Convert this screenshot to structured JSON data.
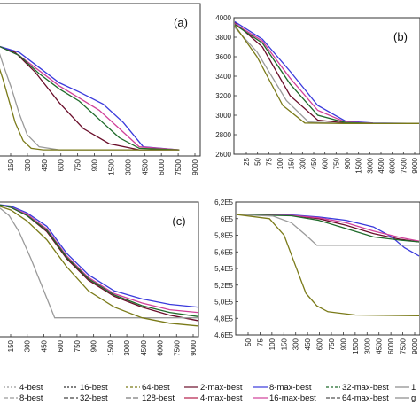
{
  "chart_data": [
    {
      "type": "line",
      "panel_label": "(a)",
      "x_tick_labels": [
        "150",
        "300",
        "450",
        "600",
        "750",
        "900",
        "1500",
        "3000",
        "4500",
        "6000",
        "7500",
        "9000"
      ],
      "y_tick_labels": [],
      "ylim": [
        0,
        100
      ],
      "series": [
        {
          "legend": "2-max-best",
          "color": "#6a0d2a",
          "x": [
            0,
            0.08,
            0.18,
            0.3,
            0.42,
            0.55,
            0.7,
            0.9
          ],
          "y": [
            72,
            68,
            55,
            35,
            18,
            8,
            4,
            4
          ]
        },
        {
          "legend": "4-max-best",
          "color": "#3a3adc",
          "x": [
            0,
            0.1,
            0.2,
            0.3,
            0.4,
            0.52,
            0.62,
            0.72,
            0.9
          ],
          "y": [
            72,
            68,
            58,
            48,
            42,
            34,
            22,
            6,
            4
          ]
        },
        {
          "legend": "8-max-best",
          "color": "#d0409a",
          "x": [
            0,
            0.1,
            0.2,
            0.3,
            0.4,
            0.5,
            0.6,
            0.7,
            0.9
          ],
          "y": [
            72,
            66,
            56,
            46,
            38,
            30,
            18,
            6,
            4
          ]
        },
        {
          "legend": "16-max-best",
          "color": "#1e6a2a",
          "x": [
            0,
            0.1,
            0.2,
            0.3,
            0.4,
            0.5,
            0.6,
            0.7,
            0.9
          ],
          "y": [
            72,
            66,
            54,
            44,
            36,
            24,
            12,
            5,
            4
          ]
        },
        {
          "legend": "64-best",
          "color": "#9a9a9a",
          "x": [
            0,
            0.02,
            0.06,
            0.1,
            0.14,
            0.2,
            0.3,
            0.5,
            0.9
          ],
          "y": [
            68,
            60,
            45,
            28,
            14,
            6,
            4,
            4,
            4
          ]
        },
        {
          "legend": "4-best",
          "color": "#7a7a18",
          "x": [
            0,
            0.02,
            0.05,
            0.08,
            0.12,
            0.16,
            0.22,
            0.4,
            0.9
          ],
          "y": [
            58,
            50,
            36,
            22,
            10,
            5,
            4,
            4,
            4
          ]
        }
      ]
    },
    {
      "type": "line",
      "panel_label": "(b)",
      "x_tick_labels": [
        "25",
        "50",
        "75",
        "100",
        "150",
        "300",
        "450",
        "600",
        "750",
        "900",
        "1500",
        "3000",
        "4500",
        "6000",
        "7500",
        "9000"
      ],
      "y_tick_labels": [
        "2600",
        "2800",
        "3000",
        "3200",
        "3400",
        "3600",
        "3800",
        "4000"
      ],
      "ylim": [
        2600,
        4000
      ],
      "series": [
        {
          "legend": "2-max-best",
          "color": "#6a0d2a",
          "x": [
            0,
            0.15,
            0.3,
            0.45,
            0.6,
            0.75,
            1
          ],
          "y": [
            3950,
            3700,
            3200,
            2950,
            2920,
            2915,
            2915
          ]
        },
        {
          "legend": "4-max-best",
          "color": "#3a3adc",
          "x": [
            0,
            0.15,
            0.3,
            0.45,
            0.6,
            0.75,
            1
          ],
          "y": [
            3960,
            3780,
            3450,
            3100,
            2940,
            2920,
            2915
          ]
        },
        {
          "legend": "8-max-best",
          "color": "#d0409a",
          "x": [
            0,
            0.15,
            0.3,
            0.45,
            0.6,
            0.75,
            1
          ],
          "y": [
            3940,
            3760,
            3380,
            3050,
            2930,
            2918,
            2915
          ]
        },
        {
          "legend": "16-max-best",
          "color": "#1e6a2a",
          "x": [
            0,
            0.15,
            0.3,
            0.45,
            0.6,
            0.75,
            1
          ],
          "y": [
            3930,
            3740,
            3320,
            3000,
            2925,
            2916,
            2915
          ]
        },
        {
          "legend": "64-best",
          "color": "#9a9a9a",
          "x": [
            0,
            0.12,
            0.28,
            0.4,
            0.6,
            1
          ],
          "y": [
            3900,
            3650,
            3150,
            2930,
            2915,
            2915
          ]
        },
        {
          "legend": "4-best",
          "color": "#7a7a18",
          "x": [
            0,
            0.12,
            0.26,
            0.38,
            0.6,
            1
          ],
          "y": [
            3920,
            3600,
            3100,
            2920,
            2915,
            2915
          ]
        }
      ]
    },
    {
      "type": "line",
      "panel_label": "(c)",
      "x_tick_labels": [
        "150",
        "300",
        "450",
        "600",
        "750",
        "900",
        "1500",
        "3000",
        "4500",
        "6000",
        "7500",
        "9000"
      ],
      "y_tick_labels": [],
      "ylim": [
        0,
        100
      ],
      "series": [
        {
          "legend": "2-max-best",
          "color": "#6a0d2a",
          "x": [
            0,
            0.06,
            0.14,
            0.24,
            0.34,
            0.45,
            0.58,
            0.72,
            0.86,
            1
          ],
          "y": [
            98,
            96,
            90,
            78,
            58,
            42,
            30,
            22,
            16,
            12
          ]
        },
        {
          "legend": "4-max-best",
          "color": "#3a3adc",
          "x": [
            0,
            0.06,
            0.14,
            0.24,
            0.34,
            0.45,
            0.58,
            0.72,
            0.86,
            1
          ],
          "y": [
            98,
            97,
            92,
            82,
            62,
            46,
            34,
            28,
            24,
            22
          ]
        },
        {
          "legend": "8-max-best",
          "color": "#d0409a",
          "x": [
            0,
            0.06,
            0.14,
            0.24,
            0.34,
            0.45,
            0.58,
            0.72,
            0.86,
            1
          ],
          "y": [
            98,
            96,
            91,
            80,
            60,
            44,
            32,
            25,
            20,
            18
          ]
        },
        {
          "legend": "16-max-best",
          "color": "#1e6a2a",
          "x": [
            0,
            0.06,
            0.14,
            0.24,
            0.34,
            0.45,
            0.58,
            0.72,
            0.86,
            1
          ],
          "y": [
            98,
            96,
            90,
            79,
            59,
            43,
            31,
            23,
            18,
            15
          ]
        },
        {
          "legend": "64-best",
          "color": "#9a9a9a",
          "x": [
            0,
            0.05,
            0.1,
            0.16,
            0.22,
            0.28,
            0.4,
            1
          ],
          "y": [
            96,
            90,
            78,
            58,
            36,
            14,
            14,
            14
          ]
        },
        {
          "legend": "4-best",
          "color": "#7a7a18",
          "x": [
            0,
            0.06,
            0.14,
            0.24,
            0.34,
            0.45,
            0.58,
            0.72,
            0.86,
            1
          ],
          "y": [
            97,
            94,
            86,
            72,
            52,
            34,
            22,
            14,
            10,
            8
          ]
        }
      ]
    },
    {
      "type": "line",
      "panel_label": "",
      "x_tick_labels": [
        "50",
        "75",
        "100",
        "150",
        "300",
        "450",
        "600",
        "750",
        "900",
        "1500",
        "3000",
        "4500",
        "6000",
        "7500",
        "9000"
      ],
      "y_tick_labels": [
        "4,6E5",
        "4,8E5",
        "5,0E5",
        "5,2E5",
        "5,4E5",
        "5,6E5",
        "5,8E5",
        "6E5",
        "6,2E5"
      ],
      "ylim": [
        460000,
        620000
      ],
      "series": [
        {
          "legend": "2-max-best",
          "color": "#6a0d2a",
          "x": [
            0,
            0.3,
            0.45,
            0.6,
            0.75,
            0.9,
            1
          ],
          "y": [
            605000,
            604000,
            600000,
            592000,
            582000,
            575000,
            572000
          ]
        },
        {
          "legend": "4-max-best",
          "color": "#3a3adc",
          "x": [
            0,
            0.3,
            0.45,
            0.6,
            0.75,
            0.85,
            0.92,
            1
          ],
          "y": [
            605000,
            604500,
            602000,
            598000,
            590000,
            578000,
            565000,
            555000
          ]
        },
        {
          "legend": "8-max-best",
          "color": "#d0409a",
          "x": [
            0,
            0.3,
            0.45,
            0.6,
            0.75,
            0.9,
            1
          ],
          "y": [
            605000,
            604000,
            601000,
            595000,
            585000,
            577000,
            573000
          ]
        },
        {
          "legend": "16-max-best",
          "color": "#1e6a2a",
          "x": [
            0,
            0.3,
            0.45,
            0.6,
            0.75,
            0.9,
            1
          ],
          "y": [
            605000,
            603500,
            598000,
            588000,
            578000,
            574000,
            572000
          ]
        },
        {
          "legend": "64-best",
          "color": "#9a9a9a",
          "x": [
            0,
            0.2,
            0.3,
            0.38,
            0.44,
            0.5,
            1
          ],
          "y": [
            605000,
            603000,
            595000,
            580000,
            568000,
            568000,
            568000
          ]
        },
        {
          "legend": "4-best",
          "color": "#7a7a18",
          "x": [
            0,
            0.18,
            0.26,
            0.32,
            0.38,
            0.44,
            0.5,
            0.65,
            1
          ],
          "y": [
            605000,
            600000,
            580000,
            545000,
            510000,
            495000,
            488000,
            484000,
            483000
          ]
        }
      ]
    }
  ],
  "legend": {
    "entries": [
      {
        "label": "4-best",
        "color": "#9a9a9a",
        "dash": "2,2"
      },
      {
        "label": "8-best",
        "color": "#9a9a9a",
        "dash": "5,2"
      },
      {
        "label": "16-best",
        "color": "#333333",
        "dash": "2,2"
      },
      {
        "label": "32-best",
        "color": "#444444",
        "dash": "5,2"
      },
      {
        "label": "64-best",
        "color": "#7a7a18",
        "dash": "3,2"
      },
      {
        "label": "128-best",
        "color": "#7a7a7a",
        "dash": "6,2"
      },
      {
        "label": "2-max-best",
        "color": "#6a0d2a",
        "dash": ""
      },
      {
        "label": "4-max-best",
        "color": "#b31e4a",
        "dash": ""
      },
      {
        "label": "8-max-best",
        "color": "#3a3adc",
        "dash": ""
      },
      {
        "label": "16-max-best",
        "color": "#d0409a",
        "dash": ""
      },
      {
        "label": "32-max-best",
        "color": "#1e6a2a",
        "dash": "3,2"
      },
      {
        "label": "64-max-best",
        "color": "#555555",
        "dash": "4,2"
      },
      {
        "label": "1",
        "color": "#888888",
        "dash": ""
      },
      {
        "label": "g",
        "color": "#888888",
        "dash": ""
      }
    ]
  }
}
